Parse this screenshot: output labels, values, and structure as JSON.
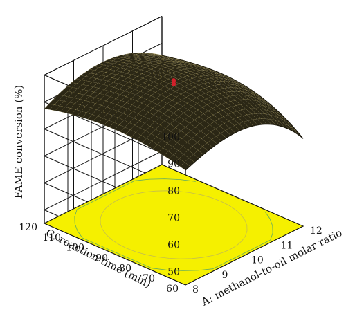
{
  "chart_data": {
    "type": "surface3d",
    "title": "",
    "zlabel": "FAME conversion (%)",
    "xlabel": "A: methanol-to-oil molar ratio",
    "ylabel": "C: reaction time (min)",
    "z_ticks": [
      "50",
      "60",
      "70",
      "80",
      "90",
      "100"
    ],
    "x_ticks": [
      "8",
      "9",
      "10",
      "11",
      "12"
    ],
    "y_ticks": [
      "60",
      "70",
      "80",
      "90",
      "100",
      "110",
      "120"
    ],
    "zlim": [
      45,
      100
    ],
    "xlim": [
      8,
      12
    ],
    "ylim": [
      60,
      120
    ],
    "surface_color": "#2b2715",
    "surface_dots": "#d9c46a",
    "floor_color": "#f5f000",
    "design_points": [
      {
        "x": 10,
        "y": 90,
        "z": 98.5
      },
      {
        "x": 10,
        "y": 90,
        "z": 97.2
      }
    ],
    "point_color": "#d0202a",
    "corner_z": {
      "x8_y60": 93,
      "x12_y60": 83,
      "x8_y120": 93,
      "x12_y120": 91
    }
  }
}
